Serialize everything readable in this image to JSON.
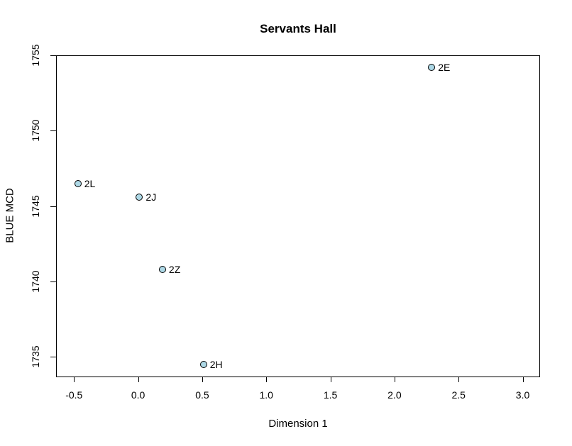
{
  "chart_data": {
    "type": "scatter",
    "title": "Servants Hall",
    "xlabel": "Dimension 1",
    "ylabel": "BLUE MCD",
    "grid": false,
    "legend": null,
    "xlim": [
      -0.64,
      3.13
    ],
    "ylim": [
      1733.7,
      1755.0
    ],
    "x_ticks": {
      "values": [
        -0.5,
        0.0,
        0.5,
        1.0,
        1.5,
        2.0,
        2.5,
        3.0
      ],
      "labels": [
        "-0.5",
        "0.0",
        "0.5",
        "1.0",
        "1.5",
        "2.0",
        "2.5",
        "3.0"
      ]
    },
    "y_ticks": {
      "values": [
        1735,
        1740,
        1745,
        1750,
        1755
      ],
      "labels": [
        "1735",
        "1740",
        "1745",
        "1750",
        "1755"
      ]
    },
    "series": [
      {
        "name": "sites",
        "marker": {
          "shape": "circle",
          "fill": "#ADD8E6",
          "stroke": "#000000"
        },
        "points": [
          {
            "label": "2E",
            "x": 2.29,
            "y": 1754.2
          },
          {
            "label": "2L",
            "x": -0.47,
            "y": 1746.5
          },
          {
            "label": "2J",
            "x": 0.01,
            "y": 1745.6
          },
          {
            "label": "2Z",
            "x": 0.19,
            "y": 1740.8
          },
          {
            "label": "2H",
            "x": 0.51,
            "y": 1734.5
          }
        ]
      }
    ],
    "colors": {
      "background": "#FFFFFF",
      "axis": "#000000",
      "text": "#000000"
    }
  }
}
